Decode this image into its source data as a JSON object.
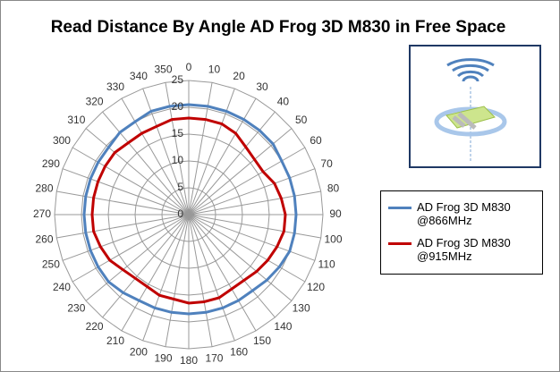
{
  "chart_data": {
    "type": "radar",
    "title": "Read Distance By Angle AD Frog 3D M830 in Free Space",
    "categories": [
      0,
      10,
      20,
      30,
      40,
      50,
      60,
      70,
      80,
      90,
      100,
      110,
      120,
      130,
      140,
      150,
      160,
      170,
      180,
      190,
      200,
      210,
      220,
      230,
      240,
      250,
      260,
      270,
      280,
      290,
      300,
      310,
      320,
      330,
      340,
      350
    ],
    "rlim": [
      0,
      25
    ],
    "rticks": [
      0,
      5,
      10,
      15,
      20,
      25
    ],
    "grid": true,
    "legend": "right",
    "series": [
      {
        "name": "AD Frog 3D M830 @866MHz",
        "color": "#4f81bd",
        "values": [
          20.5,
          20.5,
          20.5,
          20.5,
          20.5,
          20.5,
          20,
          20,
          20,
          20,
          20,
          20,
          19.5,
          19,
          18.5,
          18.5,
          18.5,
          18.5,
          18.5,
          18.5,
          18.5,
          18.5,
          19,
          19.5,
          19.5,
          19.5,
          19.5,
          19.5,
          19.5,
          19.5,
          19.5,
          19.5,
          20,
          20,
          20.5,
          20.5
        ]
      },
      {
        "name": "AD Frog 3D M830 @915MHz",
        "color": "#c00000",
        "values": [
          18,
          18,
          18,
          17.5,
          16.5,
          16,
          16,
          17,
          17.5,
          18,
          18,
          17.5,
          17,
          16.5,
          16,
          16,
          16.5,
          16.5,
          16.5,
          16,
          16,
          15.5,
          15.5,
          16,
          17,
          17.5,
          18,
          18,
          18,
          18,
          18,
          18,
          17.5,
          17.5,
          17.5,
          18
        ]
      }
    ]
  }
}
